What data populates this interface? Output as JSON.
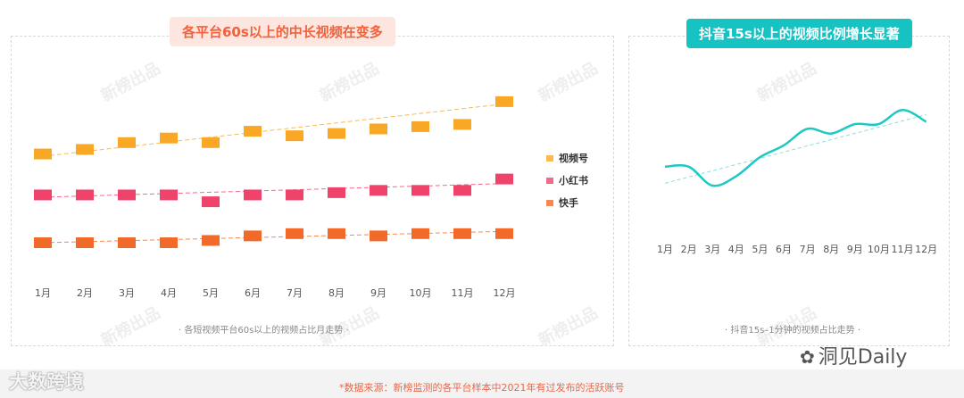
{
  "left_chart": {
    "title": "各平台60s以上的中长视频在变多",
    "subtitle": "· 各短视频平台60s以上的视频占比月走势 ·"
  },
  "right_chart": {
    "title": "抖音15s以上的视频比例增长显著",
    "subtitle": "· 抖音15s–1分钟的视频占比走势 ·"
  },
  "footer": {
    "source": "*数据来源：新榜监测的各平台样本中2021年有过发布的活跃账号",
    "brand_left": "大数跨境",
    "brand_right": "洞见Daily"
  },
  "watermark": "新榜出品",
  "chart_data": [
    {
      "type": "scatter",
      "categories": [
        "1月",
        "2月",
        "3月",
        "4月",
        "5月",
        "6月",
        "7月",
        "8月",
        "9月",
        "10月",
        "11月",
        "12月"
      ],
      "series": [
        {
          "name": "视频号",
          "color": "#f9a825",
          "values": [
            49,
            51,
            54,
            56,
            54,
            59,
            57,
            58,
            60,
            61,
            62,
            72
          ],
          "trend": [
            48,
            71
          ]
        },
        {
          "name": "小红书",
          "color": "#f0436c",
          "values": [
            31,
            31,
            31,
            31,
            28,
            31,
            31,
            32,
            33,
            33,
            33,
            38
          ],
          "trend": [
            30,
            36
          ]
        },
        {
          "name": "快手",
          "color": "#f26a2a",
          "values": [
            10,
            10,
            10,
            10,
            11,
            13,
            14,
            14,
            13,
            14,
            14,
            14
          ],
          "trend": [
            10,
            15
          ]
        }
      ],
      "legend": "right",
      "grid": false
    },
    {
      "type": "line",
      "categories": [
        "1月",
        "2月",
        "3月",
        "4月",
        "5月",
        "6月",
        "7月",
        "8月",
        "9月",
        "10月",
        "11月",
        "12月"
      ],
      "series": [
        {
          "name": "",
          "color": "#1ec8c3",
          "values": [
            66,
            66,
            58,
            62,
            70,
            75,
            82,
            80,
            84,
            84,
            90,
            85
          ],
          "trend": [
            59,
            88
          ]
        }
      ],
      "grid": false
    }
  ]
}
